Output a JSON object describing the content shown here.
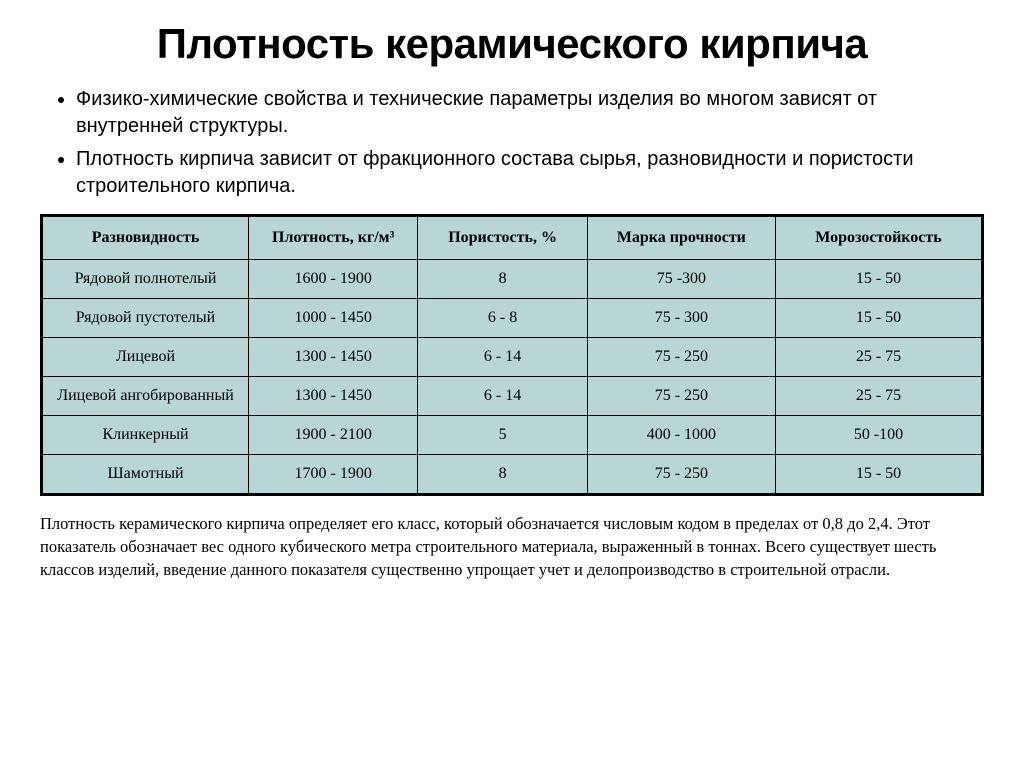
{
  "title": "Плотность керамического кирпича",
  "bullets": [
    "Физико-химические свойства и технические параметры изделия во многом зависят от внутренней структуры.",
    "Плотность кирпича зависит от фракционного состава сырья, разновидности и пористости строительного кирпича."
  ],
  "table": {
    "columns": [
      "Разновидность",
      "Плотность, кг/м³",
      "Пористость, %",
      "Марка прочности",
      "Морозостойкость"
    ],
    "rows": [
      [
        "Рядовой полнотелый",
        "1600 - 1900",
        "8",
        "75 -300",
        "15 - 50"
      ],
      [
        "Рядовой пустотелый",
        "1000 - 1450",
        "6 - 8",
        "75 - 300",
        "15 - 50"
      ],
      [
        "Лицевой",
        "1300 - 1450",
        "6 - 14",
        "75 - 250",
        "25 - 75"
      ],
      [
        "Лицевой ангобированный",
        "1300 - 1450",
        "6 - 14",
        "75 - 250",
        "25 - 75"
      ],
      [
        "Клинкерный",
        "1900 - 2100",
        "5",
        "400 - 1000",
        "50 -100"
      ],
      [
        "Шамотный",
        "1700 - 1900",
        "8",
        "75 - 250",
        "15 - 50"
      ]
    ],
    "header_bg": "#b8d6d6",
    "cell_bg": "#b8d6d6",
    "border_color": "#000000",
    "header_fontsize": 16,
    "cell_fontsize": 16,
    "font_family": "Times New Roman"
  },
  "footer": "Плотность керамического кирпича определяет его класс, который обозначается числовым кодом в пределах от 0,8 до 2,4. Этот показатель обозначает вес одного кубического метра строительного материала, выраженный в тоннах. Всего существует шесть классов изделий, введение данного показателя существенно упрощает учет и делопроизводство в строительной отрасли.",
  "styling": {
    "page_bg": "#ffffff",
    "title_fontsize": 42,
    "title_weight": 700,
    "bullet_fontsize": 20,
    "footer_fontsize": 16.5,
    "text_color": "#000000"
  }
}
